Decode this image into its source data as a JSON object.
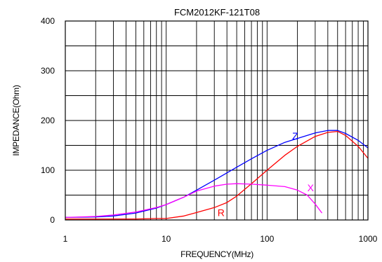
{
  "chart_data": {
    "type": "line",
    "title": "FCM2012KF-121T08",
    "xlabel": "FREQUENCY(MHz)",
    "ylabel": "IMPEDANCE(Ohm)",
    "x_scale": "log",
    "xlim": [
      1,
      1000
    ],
    "ylim": [
      0,
      400
    ],
    "x_ticks": [
      "1",
      "10",
      "100",
      "1000"
    ],
    "y_ticks": [
      "0",
      "100",
      "200",
      "300",
      "400"
    ],
    "grid": true,
    "series": [
      {
        "name": "Z",
        "color": "#0000ff",
        "x": [
          1,
          2,
          3,
          5,
          8,
          10,
          15,
          20,
          30,
          50,
          70,
          100,
          150,
          200,
          300,
          400,
          500,
          600,
          800,
          1000
        ],
        "y": [
          5,
          6,
          8,
          14,
          24,
          31,
          46,
          60,
          80,
          106,
          123,
          140,
          156,
          164,
          175,
          180,
          180,
          174,
          160,
          145
        ]
      },
      {
        "name": "R",
        "color": "#ff0000",
        "x": [
          1,
          2,
          3,
          5,
          8,
          10,
          15,
          20,
          30,
          40,
          50,
          70,
          100,
          150,
          200,
          300,
          400,
          500,
          600,
          800,
          1000
        ],
        "y": [
          2,
          2,
          2,
          2,
          3,
          3,
          8,
          15,
          25,
          35,
          48,
          73,
          100,
          130,
          148,
          168,
          176,
          178,
          170,
          148,
          124
        ]
      },
      {
        "name": "X",
        "color": "#ff00ff",
        "x": [
          1,
          2,
          3,
          5,
          8,
          10,
          15,
          20,
          30,
          40,
          50,
          70,
          100,
          150,
          200,
          250,
          300,
          350
        ],
        "y": [
          5,
          7,
          10,
          16,
          25,
          31,
          46,
          58,
          68,
          72,
          73,
          72,
          70,
          67,
          60,
          50,
          32,
          14
        ]
      }
    ]
  }
}
